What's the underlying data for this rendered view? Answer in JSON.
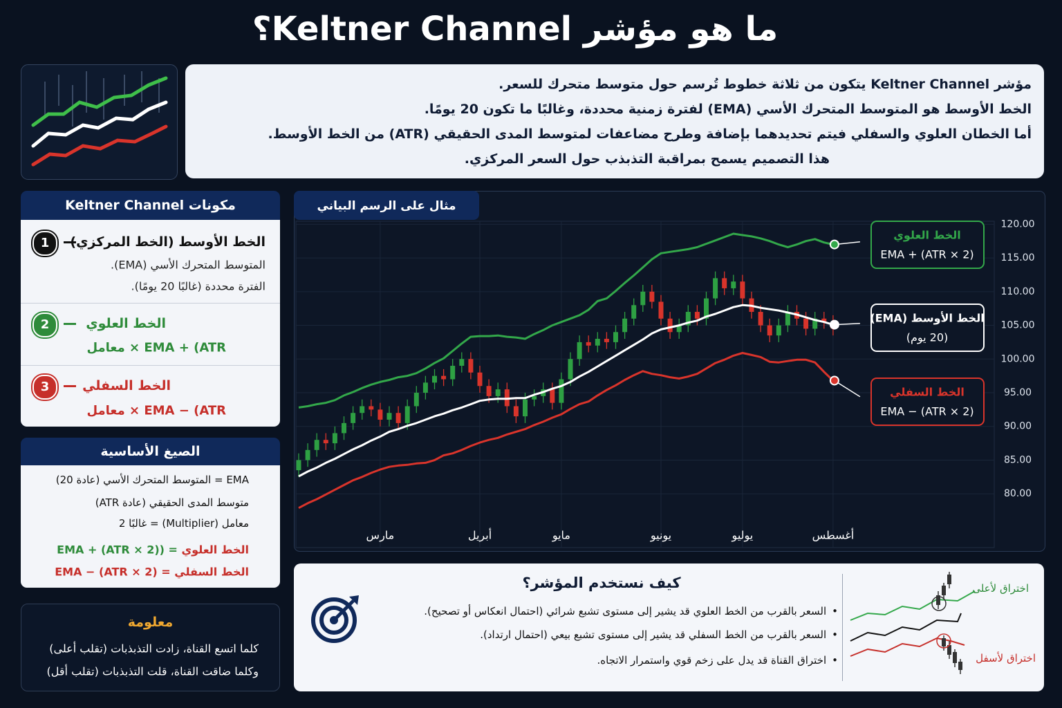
{
  "title": "ما هو مؤشر Keltner Channel؟",
  "intro": [
    "مؤشر Keltner Channel يتكون من ثلاثة خطوط تُرسم حول متوسط متحرك للسعر.",
    "الخط الأوسط هو المتوسط المتحرك الأسي (EMA) لفترة زمنية محددة، وغالبًا ما تكون 20 يومًا.",
    "أما الخطان العلوي والسفلي فيتم تحديدهما بإضافة وطرح مضاعفات لمتوسط المدى الحقيقي (ATR) من الخط الأوسط.",
    "هذا التصميم يسمح بمراقبة التذبذب حول السعر المركزي."
  ],
  "components": {
    "title": "مكونات Keltner Channel",
    "items": [
      {
        "number": 1,
        "title": "الخط الأوسط (الخط المركزي)",
        "lines": [
          "المتوسط المتحرك الأسي (EMA).",
          "الفترة محددة (غالبًا 20 يومًا)."
        ]
      },
      {
        "number": 2,
        "title": "الخط العلوي",
        "lines": [
          "EMA + (ATR × معامل"
        ]
      },
      {
        "number": 3,
        "title": "الخط السفلي",
        "lines": [
          "EMA − (ATR × معامل"
        ]
      }
    ]
  },
  "formulas": {
    "title": "الصيغ الأساسية",
    "lines": [
      "EMA = المتوسط المتحرك الأسي (عادة 20)",
      "متوسط المدى الحقيقي (عادة ATR)",
      "معامل (Multiplier) = غالبًا 2"
    ],
    "upper": {
      "label": "الخط العلوي",
      "formula": "= (EMA + (ATR × 2)"
    },
    "lower": {
      "label": "الخط السفلي",
      "formula": "= EMA − (ATR × 2)"
    }
  },
  "info": {
    "title": "معلومة",
    "lines": [
      "كلما اتسع القناة، زادت التذبذبات (تقلب أعلى)",
      "وكلما ضاقت القناة، قلت التذبذبات (تقلب أقل)"
    ]
  },
  "usage": {
    "title": "كيف نستخدم المؤشر؟",
    "bullets": [
      "السعر بالقرب من الخط العلوي قد يشير إلى مستوى تشبع شرائي (احتمال انعكاس أو تصحيح).",
      "السعر بالقرب من الخط السفلي قد يشير إلى مستوى تشبع بيعي (احتمال ارتداد).",
      "اختراق القناة قد يدل على زخم قوي واستمرار الاتجاه."
    ],
    "breakout_up": "اختراق لأعلى",
    "breakout_down": "اختراق لأسفل"
  },
  "chart_data": {
    "type": "candlestick",
    "badge": "مثال على الرسم البياني",
    "categories": [
      null,
      null,
      null,
      null,
      null,
      null,
      null,
      null,
      null,
      "مارس",
      null,
      null,
      null,
      null,
      null,
      null,
      null,
      null,
      null,
      null,
      "أبريل",
      null,
      null,
      null,
      null,
      null,
      null,
      null,
      null,
      "مايو",
      null,
      null,
      null,
      null,
      null,
      null,
      null,
      null,
      null,
      null,
      "يونيو",
      null,
      null,
      null,
      null,
      null,
      null,
      null,
      null,
      "يوليو",
      null,
      null,
      null,
      null,
      null,
      null,
      null,
      null,
      null,
      "أغسطس"
    ],
    "open": [
      83.5,
      85,
      86.5,
      88,
      87.5,
      89,
      90.5,
      92,
      93,
      92.5,
      91,
      92,
      90.5,
      93,
      95,
      96.5,
      97.5,
      97,
      99,
      100,
      98,
      96,
      94.5,
      95.5,
      93,
      91.5,
      94,
      94.5,
      95.5,
      93.5,
      97,
      100,
      102.5,
      102,
      103,
      102.5,
      104,
      106,
      108,
      110,
      108.5,
      106,
      104,
      105,
      107,
      106,
      109,
      112,
      110.5,
      111.5,
      109,
      107,
      105,
      103.5,
      105,
      107,
      106,
      104.5,
      106,
      105.5
    ],
    "high": [
      86,
      87.5,
      89,
      89,
      90,
      91.5,
      93,
      94,
      94,
      93.5,
      93,
      93,
      94,
      96,
      97.5,
      98.5,
      98.5,
      100,
      101,
      101,
      99,
      97,
      96.5,
      96.5,
      94,
      95,
      95.5,
      96.5,
      96.5,
      98,
      101,
      103.5,
      103.5,
      104,
      104,
      105,
      107,
      109,
      111,
      111,
      109.5,
      107,
      106,
      108,
      108,
      110,
      113,
      113,
      112.5,
      112.5,
      110,
      108,
      106,
      106,
      108,
      108,
      107,
      107,
      107,
      106.5
    ],
    "low": [
      82.5,
      84,
      85.5,
      86.5,
      86.5,
      88,
      89.5,
      91,
      91.5,
      90,
      90,
      89.5,
      89.5,
      92,
      94,
      95.5,
      96,
      96,
      98,
      97,
      95,
      93.5,
      93.5,
      92,
      90.5,
      90.5,
      93,
      93.5,
      92.5,
      92.5,
      96,
      99,
      101,
      101,
      101.5,
      101.5,
      103,
      105,
      107,
      107.5,
      105,
      103,
      103,
      104,
      105,
      105,
      108,
      109.5,
      109.5,
      108,
      106,
      104,
      102.5,
      102.5,
      104,
      105,
      103.5,
      103.5,
      104.5,
      103.5
    ],
    "close": [
      85,
      86.5,
      88,
      87.5,
      89,
      90.5,
      92,
      93,
      92.5,
      91,
      92,
      90.5,
      93,
      95,
      96.5,
      97.5,
      97,
      99,
      100,
      98,
      96,
      94.5,
      95.5,
      93,
      91.5,
      94,
      94.5,
      95.5,
      93.5,
      97,
      100,
      102.5,
      102,
      103,
      102.5,
      104,
      106,
      108,
      110,
      108.5,
      106,
      104,
      105,
      107,
      106,
      109,
      112,
      110.5,
      111.5,
      109,
      107,
      105,
      103.5,
      105,
      107,
      106,
      104.5,
      106,
      105.5,
      104.5
    ],
    "up_color": "#2ea043",
    "down_color": "#d9342b",
    "series": [
      {
        "name": "الخط العلوي",
        "formula": "EMA + (ATR × 2)",
        "color": "#33a84a",
        "values": [
          92.8,
          93.0,
          93.3,
          93.5,
          93.9,
          94.6,
          95.1,
          95.7,
          96.2,
          96.6,
          96.9,
          97.3,
          97.5,
          97.9,
          98.6,
          99.4,
          100.1,
          101.2,
          102.3,
          103.3,
          103.4,
          103.4,
          103.5,
          103.3,
          103.2,
          103.0,
          103.7,
          104.3,
          105.0,
          105.5,
          106.0,
          106.5,
          107.3,
          108.6,
          109.0,
          110.1,
          111.3,
          112.4,
          113.6,
          114.8,
          115.7,
          115.9,
          116.1,
          116.3,
          116.6,
          117.1,
          117.6,
          118.1,
          118.6,
          118.4,
          118.2,
          117.9,
          117.5,
          117.0,
          116.6,
          117.0,
          117.5,
          117.8,
          117.3,
          117.0
        ]
      },
      {
        "name": "الخط الأوسط (EMA)",
        "formula": "(20 يوم)",
        "color": "#ffffff",
        "values": [
          82.6,
          83.3,
          83.9,
          84.6,
          85.2,
          85.9,
          86.6,
          87.2,
          87.9,
          88.5,
          89.2,
          89.6,
          90.1,
          90.5,
          91.0,
          91.5,
          91.9,
          92.4,
          92.8,
          93.3,
          93.8,
          94.0,
          94.1,
          94.1,
          94.2,
          94.2,
          94.7,
          95.1,
          95.6,
          96.0,
          96.6,
          97.4,
          98.1,
          98.9,
          99.7,
          100.5,
          101.3,
          102.1,
          102.9,
          103.8,
          104.4,
          104.7,
          105.0,
          105.4,
          105.7,
          106.3,
          106.7,
          107.2,
          107.7,
          108.0,
          107.9,
          107.6,
          107.4,
          107.2,
          106.9,
          106.6,
          106.2,
          105.8,
          105.5,
          105.1
        ]
      },
      {
        "name": "الخط السفلي",
        "formula": "EMA − (ATR × 2)",
        "color": "#d9342b",
        "values": [
          77.9,
          78.6,
          79.2,
          79.9,
          80.6,
          81.3,
          82.0,
          82.5,
          83.1,
          83.6,
          84.0,
          84.2,
          84.3,
          84.5,
          84.6,
          85.0,
          85.7,
          86.0,
          86.5,
          87.1,
          87.6,
          88.0,
          88.3,
          88.8,
          89.2,
          89.6,
          90.2,
          90.7,
          91.3,
          91.8,
          92.6,
          93.3,
          93.7,
          94.6,
          95.4,
          96.1,
          96.9,
          97.6,
          98.2,
          97.8,
          97.6,
          97.3,
          97.1,
          97.4,
          97.8,
          98.6,
          99.4,
          99.9,
          100.5,
          100.9,
          100.6,
          100.3,
          99.6,
          99.5,
          99.7,
          99.9,
          99.9,
          99.5,
          98.1,
          96.8
        ]
      }
    ],
    "ylim": [
      75.3,
      122.5
    ],
    "yticks": [
      {
        "value": 80,
        "label": "80.00"
      },
      {
        "value": 85,
        "label": "85.00"
      },
      {
        "value": 90,
        "label": "90.00"
      },
      {
        "value": 95,
        "label": "95.00"
      },
      {
        "value": 100,
        "label": "100.00"
      },
      {
        "value": 105,
        "label": "105.00"
      },
      {
        "value": 110,
        "label": "110.00"
      },
      {
        "value": 115,
        "label": "115.00"
      },
      {
        "value": 120,
        "label": "120.00"
      }
    ],
    "grid": true
  }
}
